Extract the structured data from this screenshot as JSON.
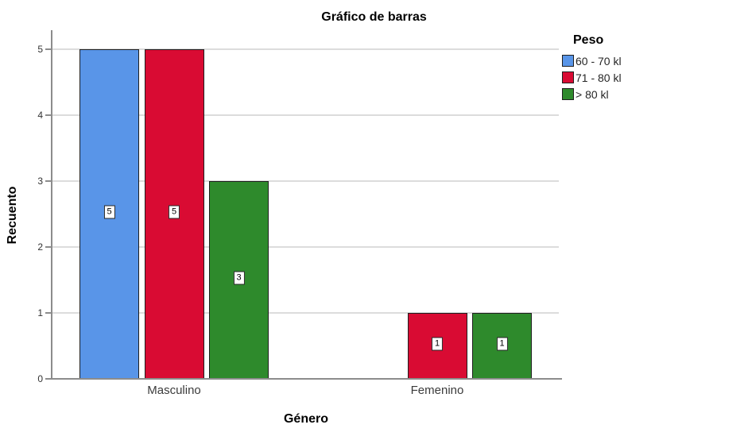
{
  "chart_data": {
    "type": "bar",
    "title": "Gráfico de barras",
    "xlabel": "Género",
    "ylabel": "Recuento",
    "categories": [
      "Masculino",
      "Femenino"
    ],
    "series": [
      {
        "name": "60 - 70 kl",
        "color": "#5995E8",
        "values": [
          5,
          0
        ]
      },
      {
        "name": "71 - 80 kl",
        "color": "#D90B33",
        "values": [
          5,
          1
        ]
      },
      {
        "name": "> 80 kl",
        "color": "#2E8A2C",
        "values": [
          3,
          1
        ]
      }
    ],
    "bar_value_labels": [
      [
        5,
        5,
        3
      ],
      [
        null,
        1,
        1
      ]
    ],
    "ylim": [
      0,
      5
    ],
    "yticks": [
      0,
      1,
      2,
      3,
      4,
      5
    ],
    "grid": "horizontal",
    "legend": {
      "title": "Peso",
      "position": "right"
    }
  },
  "colors": {
    "background": "#FFFFFF",
    "gridline": "#DCDCDC",
    "axis": "#8C8C8C",
    "bar_border": "#1F1F1F",
    "title_text": "#000000",
    "tick_text": "#333333",
    "category_text": "#3B3B3B"
  }
}
